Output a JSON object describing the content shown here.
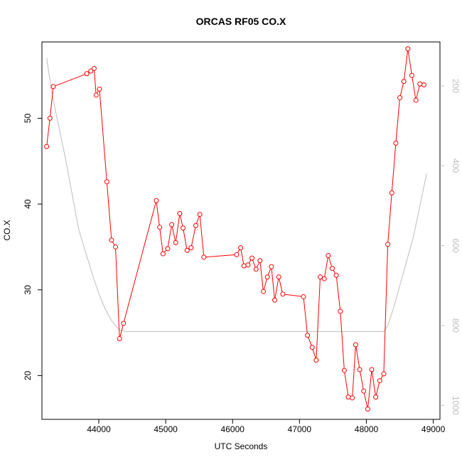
{
  "chart_data": {
    "type": "line",
    "title": "ORCAS RF05 CO.X",
    "xlabel": "UTC Seconds",
    "ylabel": "CO.X",
    "xlim": [
      43150,
      49100
    ],
    "ylim": [
      14.9,
      58.9
    ],
    "xticks": [
      44000,
      45000,
      46000,
      47000,
      48000,
      49000
    ],
    "xtick_labels": [
      "44000",
      "45000",
      "46000",
      "47000",
      "48000",
      "49000"
    ],
    "yticks": [
      20,
      30,
      40,
      50
    ],
    "ytick_labels": [
      "20",
      "30",
      "40",
      "50"
    ],
    "y2lim": [
      1035,
      90
    ],
    "y2ticks": [
      200,
      400,
      600,
      800,
      1000
    ],
    "y2tick_labels": [
      "200",
      "400",
      "600",
      "800",
      "1000"
    ],
    "grid": false,
    "series": [
      {
        "color": "#ff0000",
        "marker": "open-circle",
        "axis": "left",
        "x": [
          43220,
          43270,
          43320,
          43820,
          43880,
          43930,
          43960,
          44010,
          44120,
          44190,
          44250,
          44310,
          44370,
          44860,
          44910,
          44960,
          45030,
          45090,
          45150,
          45210,
          45260,
          45320,
          45380,
          45450,
          45510,
          45570,
          46060,
          46120,
          46170,
          46230,
          46290,
          46350,
          46410,
          46460,
          46520,
          46580,
          46630,
          46690,
          46750,
          47060,
          47120,
          47190,
          47250,
          47310,
          47370,
          47430,
          47490,
          47550,
          47610,
          47670,
          47730,
          47790,
          47840,
          47900,
          47960,
          48020,
          48080,
          48140,
          48200,
          48260,
          48320,
          48380,
          48440,
          48500,
          48560,
          48620,
          48680,
          48740,
          48800,
          48860
        ],
        "y": [
          46.7,
          50.0,
          53.7,
          55.2,
          55.5,
          55.8,
          52.7,
          53.4,
          42.6,
          35.8,
          35.0,
          24.3,
          26.1,
          40.4,
          37.3,
          34.2,
          34.8,
          37.6,
          35.5,
          38.9,
          37.2,
          34.6,
          34.9,
          37.5,
          38.8,
          33.8,
          34.1,
          34.9,
          32.8,
          32.9,
          33.7,
          32.4,
          33.4,
          29.8,
          31.5,
          32.7,
          28.8,
          31.5,
          29.5,
          29.2,
          24.7,
          23.3,
          21.8,
          31.5,
          31.3,
          34.0,
          32.5,
          31.7,
          27.5,
          20.6,
          17.5,
          17.4,
          23.6,
          20.7,
          18.2,
          16.1,
          20.7,
          17.5,
          19.4,
          20.2,
          35.3,
          41.3,
          47.1,
          52.4,
          54.3,
          58.1,
          55.0,
          52.1,
          54.0,
          53.9
        ]
      },
      {
        "color": "#bdbdbd",
        "marker": "none",
        "axis": "right",
        "x": [
          43220,
          43300,
          43500,
          43700,
          43900,
          44000,
          44100,
          44200,
          44300,
          44400,
          45000,
          46000,
          47000,
          48000,
          48260,
          48320,
          48400,
          48500,
          48600,
          48700,
          48800,
          48900
        ],
        "y": [
          130,
          220,
          380,
          560,
          670,
          720,
          760,
          790,
          810,
          815,
          815,
          815,
          815,
          815,
          815,
          800,
          760,
          700,
          640,
          580,
          500,
          420
        ]
      }
    ]
  }
}
